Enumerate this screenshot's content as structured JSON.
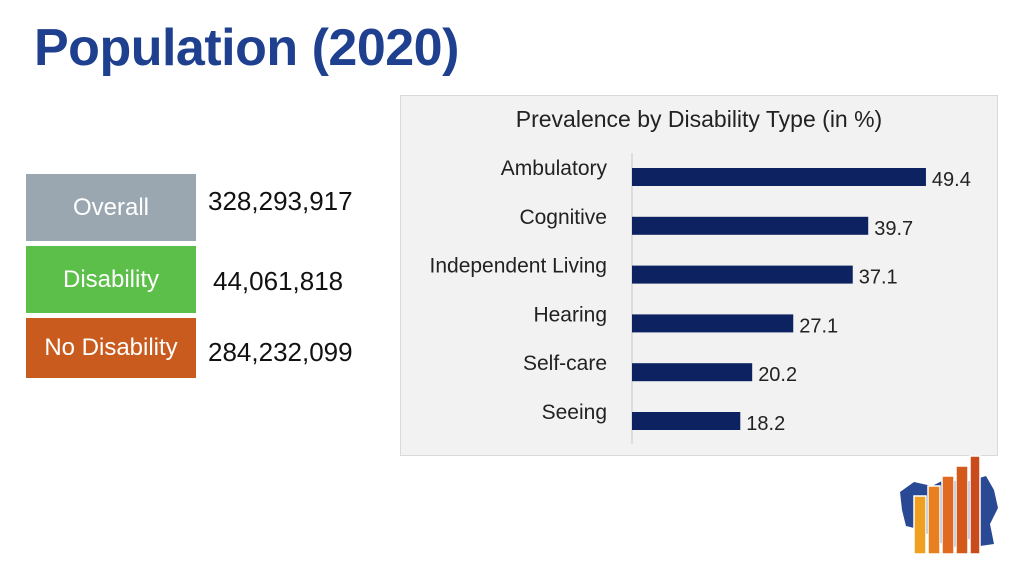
{
  "page": {
    "title": "Population (2020)"
  },
  "stats": [
    {
      "label": "Overall",
      "value": "328,293,917",
      "color": "#9aa7b0"
    },
    {
      "label": "Disability",
      "value": "44,061,818",
      "color": "#5cbf4a"
    },
    {
      "label": "No Disability",
      "value": "284,232,099",
      "color": "#c95b1f"
    }
  ],
  "chart_data": {
    "type": "bar",
    "orientation": "horizontal",
    "title": "Prevalence by Disability Type (in %)",
    "categories": [
      "Ambulatory",
      "Cognitive",
      "Independent Living",
      "Hearing",
      "Self-care",
      "Seeing"
    ],
    "values": [
      49.4,
      39.7,
      37.1,
      27.1,
      20.2,
      18.2
    ],
    "value_labels": [
      "49.4",
      "39.7",
      "37.1",
      "27.1",
      "20.2",
      "18.2"
    ],
    "xlim": [
      0,
      50
    ],
    "bar_color": "#0d2260",
    "xlabel": "",
    "ylabel": ""
  },
  "logo": {
    "icon": "bar-chart-us-map-icon",
    "colors": [
      "#1f3f8f",
      "#f0a020",
      "#e06a1f",
      "#c94a1a"
    ]
  }
}
